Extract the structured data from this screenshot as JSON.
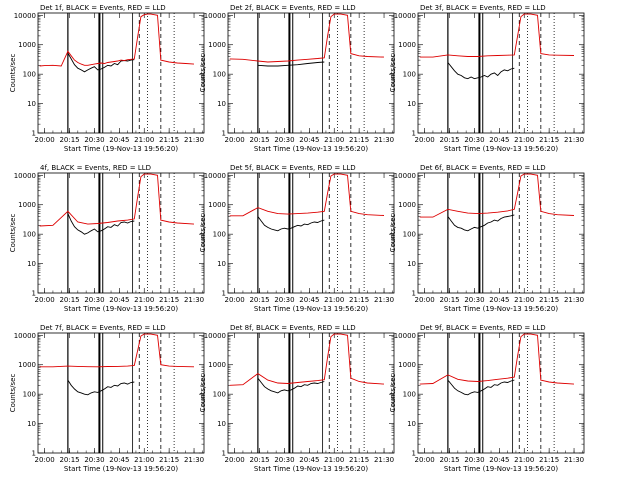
{
  "page": {
    "xlabel": "Start Time (19-Nov-13 19:56:20)",
    "ylabel": "Counts/sec",
    "x_ticks": [
      "20:00",
      "20:15",
      "20:30",
      "20:45",
      "21:00",
      "21:15",
      "21:30"
    ],
    "y_ticks": [
      "1",
      "10",
      "100",
      "1000",
      "10000"
    ],
    "colors": {
      "events": "#000000",
      "lld": "#dd0000"
    }
  },
  "chart_data": [
    {
      "type": "line",
      "title": "Det 1f, BLACK = Events, RED = LLD",
      "ylog": true,
      "ylim": [
        1,
        12000
      ],
      "xlim": [
        "19:56",
        "21:36"
      ],
      "series": [
        {
          "name": "Events",
          "color": "#000000",
          "x": [
            "20:14",
            "20:16",
            "20:18",
            "20:20",
            "20:22",
            "20:24",
            "20:26",
            "20:28",
            "20:30",
            "20:32",
            "20:34",
            "20:36",
            "20:38",
            "20:40",
            "20:42",
            "20:44",
            "20:46",
            "20:48",
            "20:50",
            "20:52",
            "20:54"
          ],
          "values": [
            520,
            330,
            210,
            160,
            140,
            120,
            140,
            160,
            180,
            140,
            150,
            170,
            200,
            190,
            230,
            210,
            280,
            290,
            280,
            300,
            310
          ]
        },
        {
          "name": "LLD",
          "color": "#dd0000",
          "x": [
            "19:57",
            "20:00",
            "20:05",
            "20:10",
            "20:14",
            "20:16",
            "20:18",
            "20:20",
            "20:22",
            "20:24",
            "20:26",
            "20:28",
            "20:30",
            "20:32",
            "20:34",
            "20:36",
            "20:38",
            "20:40",
            "20:42",
            "20:44",
            "20:46",
            "20:48",
            "20:50",
            "20:52",
            "20:54",
            "20:56",
            "20:58",
            "21:00",
            "21:02",
            "21:04",
            "21:06",
            "21:08",
            "21:10",
            "21:15",
            "21:20",
            "21:25",
            "21:30"
          ],
          "values": [
            190,
            195,
            200,
            190,
            600,
            420,
            300,
            250,
            220,
            200,
            200,
            210,
            220,
            230,
            240,
            230,
            250,
            260,
            270,
            280,
            300,
            290,
            310,
            320,
            330,
            1800,
            9000,
            10500,
            11000,
            11000,
            10500,
            10000,
            300,
            260,
            240,
            230,
            220
          ]
        }
      ]
    },
    {
      "type": "line",
      "title": "Det 2f, BLACK = Events, RED = LLD",
      "ylog": true,
      "ylim": [
        1,
        12000
      ],
      "xlim": [
        "19:56",
        "21:36"
      ],
      "series": [
        {
          "name": "Events",
          "color": "#000000",
          "x": [
            "20:14",
            "20:20",
            "20:26",
            "20:32",
            "20:38",
            "20:44",
            "20:50",
            "20:54"
          ],
          "values": [
            200,
            190,
            190,
            200,
            210,
            230,
            250,
            260
          ]
        },
        {
          "name": "LLD",
          "color": "#dd0000",
          "x": [
            "19:57",
            "20:05",
            "20:14",
            "20:20",
            "20:26",
            "20:32",
            "20:38",
            "20:44",
            "20:50",
            "20:54",
            "20:56",
            "20:58",
            "21:00",
            "21:04",
            "21:08",
            "21:10",
            "21:15",
            "21:20",
            "21:30"
          ],
          "values": [
            330,
            320,
            280,
            260,
            270,
            280,
            300,
            320,
            340,
            360,
            2000,
            9000,
            11000,
            11000,
            10000,
            500,
            420,
            400,
            380
          ]
        }
      ]
    },
    {
      "type": "line",
      "title": "Det 3f, BLACK = Events, RED = LLD",
      "ylog": true,
      "ylim": [
        1,
        12000
      ],
      "xlim": [
        "19:56",
        "21:36"
      ],
      "series": [
        {
          "name": "Events",
          "color": "#000000",
          "x": [
            "20:14",
            "20:16",
            "20:18",
            "20:20",
            "20:22",
            "20:24",
            "20:26",
            "20:28",
            "20:30",
            "20:32",
            "20:34",
            "20:36",
            "20:38",
            "20:40",
            "20:42",
            "20:44",
            "20:46",
            "20:48",
            "20:50",
            "20:52",
            "20:54"
          ],
          "values": [
            250,
            180,
            130,
            100,
            90,
            75,
            70,
            80,
            70,
            75,
            80,
            90,
            80,
            100,
            110,
            90,
            120,
            140,
            130,
            150,
            160
          ]
        },
        {
          "name": "LLD",
          "color": "#dd0000",
          "x": [
            "19:57",
            "20:05",
            "20:14",
            "20:20",
            "20:26",
            "20:32",
            "20:38",
            "20:44",
            "20:50",
            "20:54",
            "20:56",
            "20:58",
            "21:00",
            "21:04",
            "21:08",
            "21:10",
            "21:15",
            "21:20",
            "21:30"
          ],
          "values": [
            380,
            380,
            450,
            420,
            400,
            400,
            420,
            430,
            440,
            450,
            2000,
            9000,
            11000,
            11000,
            10000,
            500,
            450,
            440,
            430
          ]
        }
      ]
    },
    {
      "type": "line",
      "title": "4f, BLACK = Events, RED = LLD",
      "ylog": true,
      "ylim": [
        1,
        12000
      ],
      "xlim": [
        "19:56",
        "21:36"
      ],
      "series": [
        {
          "name": "Events",
          "color": "#000000",
          "x": [
            "20:14",
            "20:16",
            "20:18",
            "20:20",
            "20:22",
            "20:24",
            "20:26",
            "20:28",
            "20:30",
            "20:32",
            "20:34",
            "20:36",
            "20:38",
            "20:40",
            "20:42",
            "20:44",
            "20:46",
            "20:48",
            "20:50",
            "20:52",
            "20:54"
          ],
          "values": [
            500,
            280,
            180,
            140,
            120,
            100,
            110,
            130,
            150,
            120,
            130,
            150,
            180,
            170,
            210,
            190,
            250,
            260,
            240,
            270,
            280
          ]
        },
        {
          "name": "LLD",
          "color": "#dd0000",
          "x": [
            "19:57",
            "20:05",
            "20:14",
            "20:20",
            "20:26",
            "20:32",
            "20:38",
            "20:44",
            "20:50",
            "20:54",
            "20:56",
            "20:58",
            "21:00",
            "21:04",
            "21:08",
            "21:10",
            "21:15",
            "21:20",
            "21:30"
          ],
          "values": [
            190,
            200,
            600,
            260,
            220,
            230,
            250,
            280,
            300,
            330,
            1800,
            9000,
            11000,
            11000,
            10000,
            300,
            260,
            240,
            220
          ]
        }
      ]
    },
    {
      "type": "line",
      "title": "Det 5f, BLACK = Events, RED = LLD",
      "ylog": true,
      "ylim": [
        1,
        12000
      ],
      "xlim": [
        "19:56",
        "21:36"
      ],
      "series": [
        {
          "name": "Events",
          "color": "#000000",
          "x": [
            "20:14",
            "20:16",
            "20:18",
            "20:20",
            "20:22",
            "20:24",
            "20:26",
            "20:28",
            "20:30",
            "20:32",
            "20:34",
            "20:36",
            "20:38",
            "20:40",
            "20:42",
            "20:44",
            "20:46",
            "20:48",
            "20:50",
            "20:52",
            "20:54"
          ],
          "values": [
            400,
            280,
            200,
            170,
            150,
            140,
            130,
            150,
            160,
            150,
            160,
            180,
            200,
            190,
            220,
            210,
            240,
            260,
            250,
            280,
            300
          ]
        },
        {
          "name": "LLD",
          "color": "#dd0000",
          "x": [
            "19:57",
            "20:05",
            "20:14",
            "20:20",
            "20:26",
            "20:32",
            "20:38",
            "20:44",
            "20:50",
            "20:54",
            "20:56",
            "20:58",
            "21:00",
            "21:04",
            "21:08",
            "21:10",
            "21:15",
            "21:20",
            "21:30"
          ],
          "values": [
            420,
            420,
            800,
            600,
            500,
            480,
            500,
            520,
            560,
            600,
            2500,
            9500,
            11000,
            11000,
            10000,
            600,
            500,
            460,
            430
          ]
        }
      ]
    },
    {
      "type": "line",
      "title": "Det 6f, BLACK = Events, RED = LLD",
      "ylog": true,
      "ylim": [
        1,
        12000
      ],
      "xlim": [
        "19:56",
        "21:36"
      ],
      "series": [
        {
          "name": "Events",
          "color": "#000000",
          "x": [
            "20:14",
            "20:16",
            "20:18",
            "20:20",
            "20:22",
            "20:24",
            "20:26",
            "20:28",
            "20:30",
            "20:32",
            "20:34",
            "20:36",
            "20:38",
            "20:40",
            "20:42",
            "20:44",
            "20:46",
            "20:48",
            "20:50",
            "20:52",
            "20:54"
          ],
          "values": [
            400,
            280,
            200,
            170,
            160,
            140,
            130,
            150,
            170,
            160,
            180,
            200,
            240,
            260,
            300,
            280,
            340,
            380,
            400,
            420,
            450
          ]
        },
        {
          "name": "LLD",
          "color": "#dd0000",
          "x": [
            "19:57",
            "20:05",
            "20:14",
            "20:20",
            "20:26",
            "20:32",
            "20:38",
            "20:44",
            "20:50",
            "20:54",
            "20:56",
            "20:58",
            "21:00",
            "21:04",
            "21:08",
            "21:10",
            "21:15",
            "21:20",
            "21:30"
          ],
          "values": [
            380,
            380,
            700,
            600,
            520,
            500,
            520,
            560,
            620,
            700,
            2500,
            9500,
            11000,
            11000,
            10000,
            600,
            500,
            460,
            430
          ]
        }
      ]
    },
    {
      "type": "line",
      "title": "Det 7f, BLACK = Events, RED = LLD",
      "ylog": true,
      "ylim": [
        1,
        12000
      ],
      "xlim": [
        "19:56",
        "21:36"
      ],
      "series": [
        {
          "name": "Events",
          "color": "#000000",
          "x": [
            "20:14",
            "20:16",
            "20:18",
            "20:20",
            "20:22",
            "20:24",
            "20:26",
            "20:28",
            "20:30",
            "20:32",
            "20:34",
            "20:36",
            "20:38",
            "20:40",
            "20:42",
            "20:44",
            "20:46",
            "20:48",
            "20:50",
            "20:52",
            "20:54"
          ],
          "values": [
            300,
            200,
            150,
            120,
            110,
            100,
            95,
            110,
            120,
            115,
            130,
            150,
            180,
            170,
            200,
            190,
            230,
            240,
            220,
            250,
            260
          ]
        },
        {
          "name": "LLD",
          "color": "#dd0000",
          "x": [
            "19:57",
            "20:05",
            "20:14",
            "20:20",
            "20:26",
            "20:32",
            "20:38",
            "20:44",
            "20:50",
            "20:54",
            "20:56",
            "20:58",
            "21:00",
            "21:04",
            "21:08",
            "21:10",
            "21:15",
            "21:20",
            "21:30"
          ],
          "values": [
            850,
            850,
            900,
            880,
            860,
            850,
            870,
            880,
            900,
            950,
            3000,
            9500,
            11000,
            11000,
            10000,
            1000,
            900,
            880,
            850
          ]
        }
      ]
    },
    {
      "type": "line",
      "title": "Det 8f, BLACK = Events, RED = LLD",
      "ylog": true,
      "ylim": [
        1,
        12000
      ],
      "xlim": [
        "19:56",
        "21:36"
      ],
      "series": [
        {
          "name": "Events",
          "color": "#000000",
          "x": [
            "20:14",
            "20:16",
            "20:18",
            "20:20",
            "20:22",
            "20:24",
            "20:26",
            "20:28",
            "20:30",
            "20:32",
            "20:34",
            "20:36",
            "20:38",
            "20:40",
            "20:42",
            "20:44",
            "20:46",
            "20:48",
            "20:50",
            "20:52",
            "20:54"
          ],
          "values": [
            350,
            250,
            180,
            150,
            130,
            120,
            110,
            130,
            140,
            130,
            140,
            160,
            190,
            180,
            210,
            200,
            230,
            240,
            230,
            250,
            270
          ]
        },
        {
          "name": "LLD",
          "color": "#dd0000",
          "x": [
            "19:57",
            "20:05",
            "20:14",
            "20:20",
            "20:26",
            "20:32",
            "20:38",
            "20:44",
            "20:50",
            "20:54",
            "20:56",
            "20:58",
            "21:00",
            "21:04",
            "21:08",
            "21:10",
            "21:15",
            "21:20",
            "21:30"
          ],
          "values": [
            200,
            210,
            500,
            300,
            240,
            230,
            250,
            270,
            290,
            310,
            1800,
            9000,
            11000,
            11000,
            10000,
            350,
            270,
            240,
            220
          ]
        }
      ]
    },
    {
      "type": "line",
      "title": "Det 9f, BLACK = Events, RED = LLD",
      "ylog": true,
      "ylim": [
        1,
        12000
      ],
      "xlim": [
        "19:56",
        "21:36"
      ],
      "series": [
        {
          "name": "Events",
          "color": "#000000",
          "x": [
            "20:14",
            "20:16",
            "20:18",
            "20:20",
            "20:22",
            "20:24",
            "20:26",
            "20:28",
            "20:30",
            "20:32",
            "20:34",
            "20:36",
            "20:38",
            "20:40",
            "20:42",
            "20:44",
            "20:46",
            "20:48",
            "20:50",
            "20:52",
            "20:54"
          ],
          "values": [
            300,
            220,
            160,
            130,
            115,
            100,
            95,
            110,
            120,
            115,
            130,
            150,
            180,
            170,
            210,
            200,
            240,
            260,
            250,
            280,
            300
          ]
        },
        {
          "name": "LLD",
          "color": "#dd0000",
          "x": [
            "19:57",
            "20:05",
            "20:14",
            "20:20",
            "20:26",
            "20:32",
            "20:38",
            "20:44",
            "20:50",
            "20:54",
            "20:56",
            "20:58",
            "21:00",
            "21:04",
            "21:08",
            "21:10",
            "21:15",
            "21:20",
            "21:30"
          ],
          "values": [
            220,
            230,
            450,
            320,
            280,
            270,
            290,
            320,
            350,
            380,
            2000,
            9000,
            11000,
            11000,
            10000,
            300,
            260,
            240,
            220
          ]
        }
      ]
    }
  ]
}
